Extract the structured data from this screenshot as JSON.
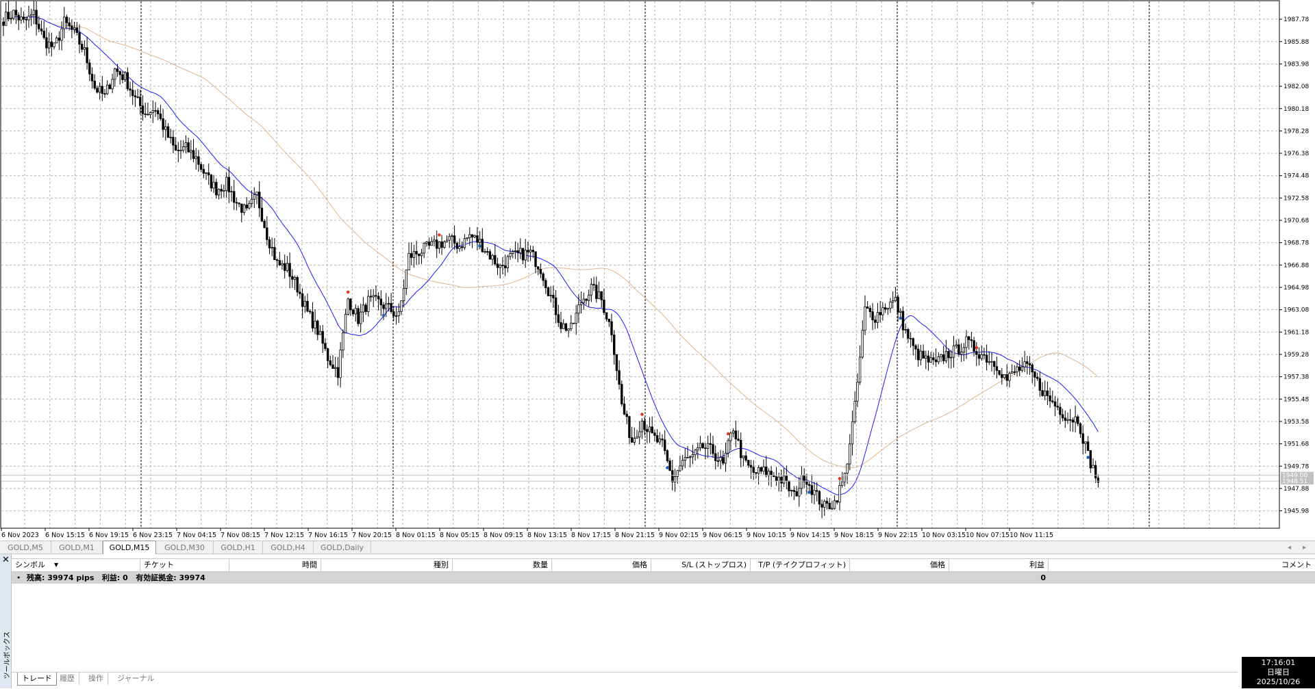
{
  "chart": {
    "price_axis": {
      "min": 1944.5,
      "max": 1989.3,
      "ticks": [
        "1987.78",
        "1985.88",
        "1983.98",
        "1982.08",
        "1980.18",
        "1978.28",
        "1976.38",
        "1974.48",
        "1972.58",
        "1970.68",
        "1968.78",
        "1966.88",
        "1964.98",
        "1963.08",
        "1961.18",
        "1959.28",
        "1957.38",
        "1955.48",
        "1953.58",
        "1951.68",
        "1949.78",
        "1947.88",
        "1945.98"
      ],
      "current_bid_label": "1948.51",
      "current_ask_label": "1949.00"
    },
    "time_axis_labels": [
      "6 Nov 2023",
      "6 Nov 15:15",
      "6 Nov 19:15",
      "6 Nov 23:15",
      "7 Nov 04:15",
      "7 Nov 08:15",
      "7 Nov 12:15",
      "7 Nov 16:15",
      "7 Nov 20:15",
      "8 Nov 01:15",
      "8 Nov 05:15",
      "8 Nov 09:15",
      "8 Nov 13:15",
      "8 Nov 17:15",
      "8 Nov 21:15",
      "9 Nov 02:15",
      "9 Nov 06:15",
      "9 Nov 10:15",
      "9 Nov 14:15",
      "9 Nov 18:15",
      "9 Nov 22:15",
      "10 Nov 03:15",
      "10 Nov 07:15",
      "10 Nov 11:15"
    ],
    "colors": {
      "candle": "#000000",
      "ma_fast": "#1a1aff",
      "ma_slow": "#e0b48c",
      "buy_marker": "#1c5fb8",
      "sell_marker": "#e23a1e",
      "grid": "#b4b4b4"
    }
  },
  "chart_data": {
    "type": "candlestick",
    "symbol": "GOLD",
    "timeframe": "M15",
    "close_path": [
      1987.8,
      1988.3,
      1987.5,
      1988.2,
      1986.0,
      1985.3,
      1987.5,
      1986.6,
      1985.0,
      1982.0,
      1981.2,
      1983.5,
      1982.8,
      1981.0,
      1979.8,
      1980.2,
      1978.2,
      1976.5,
      1976.8,
      1976.0,
      1974.4,
      1973.3,
      1973.8,
      1972.2,
      1971.3,
      1972.8,
      1969.5,
      1967.0,
      1966.6,
      1965.0,
      1962.8,
      1961.3,
      1959.0,
      1957.8,
      1964.0,
      1962.3,
      1963.8,
      1963.7,
      1963.2,
      1962.5,
      1967.6,
      1968.0,
      1968.4,
      1968.7,
      1969.0,
      1968.5,
      1969.4,
      1968.8,
      1967.7,
      1966.7,
      1967.5,
      1967.8,
      1967.9,
      1966.6,
      1964.2,
      1961.8,
      1961.4,
      1963.8,
      1964.9,
      1963.9,
      1961.3,
      1955.0,
      1951.9,
      1953.7,
      1952.3,
      1951.5,
      1948.6,
      1950.2,
      1950.5,
      1951.4,
      1951.0,
      1949.8,
      1953.1,
      1950.2,
      1949.2,
      1949.3,
      1949.0,
      1948.5,
      1947.2,
      1949.0,
      1947.5,
      1946.3,
      1946.7,
      1948.9,
      1954.8,
      1963.1,
      1962.5,
      1963.4,
      1963.8,
      1961.2,
      1959.4,
      1958.8,
      1958.4,
      1959.3,
      1959.6,
      1960.3,
      1959.6,
      1959.0,
      1958.4,
      1957.1,
      1958.0,
      1958.2,
      1956.9,
      1955.6,
      1954.8,
      1953.9,
      1953.8,
      1950.7,
      1948.4
    ],
    "legend": "",
    "xlabel": "",
    "ylabel": ""
  },
  "tf_tabs": [
    {
      "label": "GOLD,M5",
      "active": false
    },
    {
      "label": "GOLD,M1",
      "active": false
    },
    {
      "label": "GOLD,M15",
      "active": true
    },
    {
      "label": "GOLD,M30",
      "active": false
    },
    {
      "label": "GOLD,H1",
      "active": false
    },
    {
      "label": "GOLD,H4",
      "active": false
    },
    {
      "label": "GOLD,Daily",
      "active": false
    }
  ],
  "toolbox": {
    "vertical_label": "ツールボックス",
    "close_glyph": "✕",
    "columns": [
      "シンボル",
      "チケット",
      "時間",
      "種別",
      "数量",
      "価格",
      "S/L (ストップロス)",
      "T/P (テイクプロフィット)",
      "価格",
      "利益",
      "コメント"
    ],
    "balance_text": "残高: 39974 pips   利益: 0   有効証拠金: 39974",
    "balance_profit": "0",
    "tabs": [
      {
        "label": "トレード",
        "active": true
      },
      {
        "label": "履歴",
        "active": false
      },
      {
        "label": "操作",
        "active": false
      },
      {
        "label": "ジャーナル",
        "active": false
      }
    ]
  },
  "clock": {
    "time": "17:16:01",
    "weekday": "日曜日",
    "date": "2025/10/26"
  }
}
